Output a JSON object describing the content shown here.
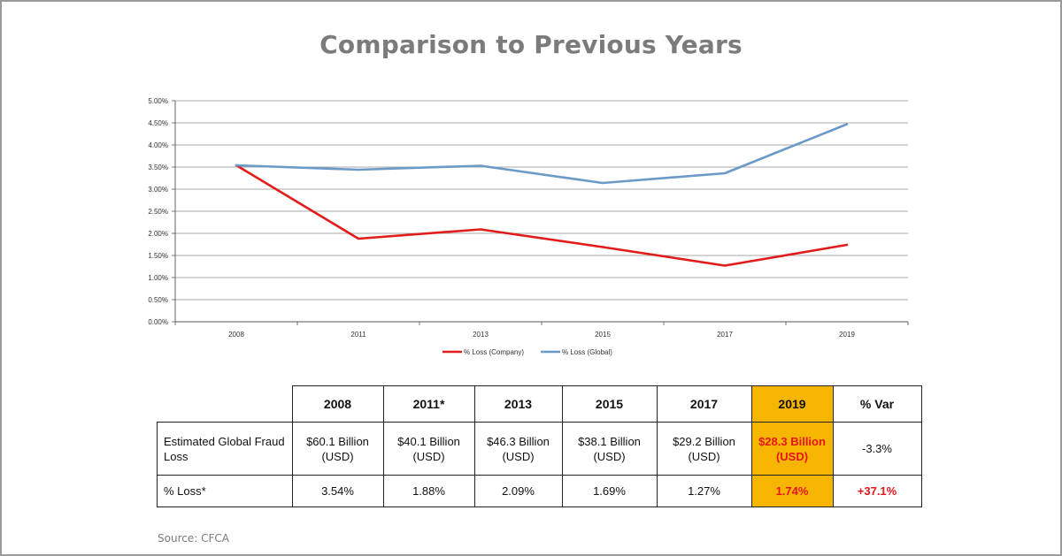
{
  "title": "Comparison to Previous Years",
  "source": "Source: CFCA",
  "chart_data": {
    "type": "line",
    "x": [
      "2008",
      "2011",
      "2013",
      "2015",
      "2017",
      "2019"
    ],
    "y_ticks": [
      "0.00%",
      "0.50%",
      "1.00%",
      "1.50%",
      "2.00%",
      "2.50%",
      "3.00%",
      "3.50%",
      "4.00%",
      "4.50%",
      "5.00%"
    ],
    "ylim": [
      0,
      5
    ],
    "grid": true,
    "legend_position": "bottom",
    "series": [
      {
        "name": "% Loss (Company)",
        "color": "#e21b1b",
        "values": [
          3.54,
          1.88,
          2.09,
          1.69,
          1.27,
          1.74
        ]
      },
      {
        "name": "% Loss (Global)",
        "color": "#6b9ac8",
        "values": [
          3.54,
          3.44,
          3.53,
          3.14,
          3.36,
          4.47
        ]
      }
    ]
  },
  "table": {
    "headers": [
      "2008",
      "2011*",
      "2013",
      "2015",
      "2017",
      "2019",
      "% Var"
    ],
    "rows": [
      {
        "label": "Estimated Global Fraud Loss",
        "cells": [
          [
            "$60.1 Billion",
            "(USD)"
          ],
          [
            "$40.1 Billion",
            "(USD)"
          ],
          [
            "$46.3 Billion",
            "(USD)"
          ],
          [
            "$38.1 Billion",
            "(USD)"
          ],
          [
            "$29.2 Billion",
            "(USD)"
          ],
          [
            "$28.3 Billion",
            "(USD)"
          ]
        ],
        "var": "-3.3%"
      },
      {
        "label": "% Loss*",
        "cells": [
          "3.54%",
          "1.88%",
          "2.09%",
          "1.69%",
          "1.27%",
          "1.74%"
        ],
        "var": "+37.1%"
      }
    ],
    "highlight_color": "#f5b500",
    "highlight_text_color": "#e8141c"
  }
}
